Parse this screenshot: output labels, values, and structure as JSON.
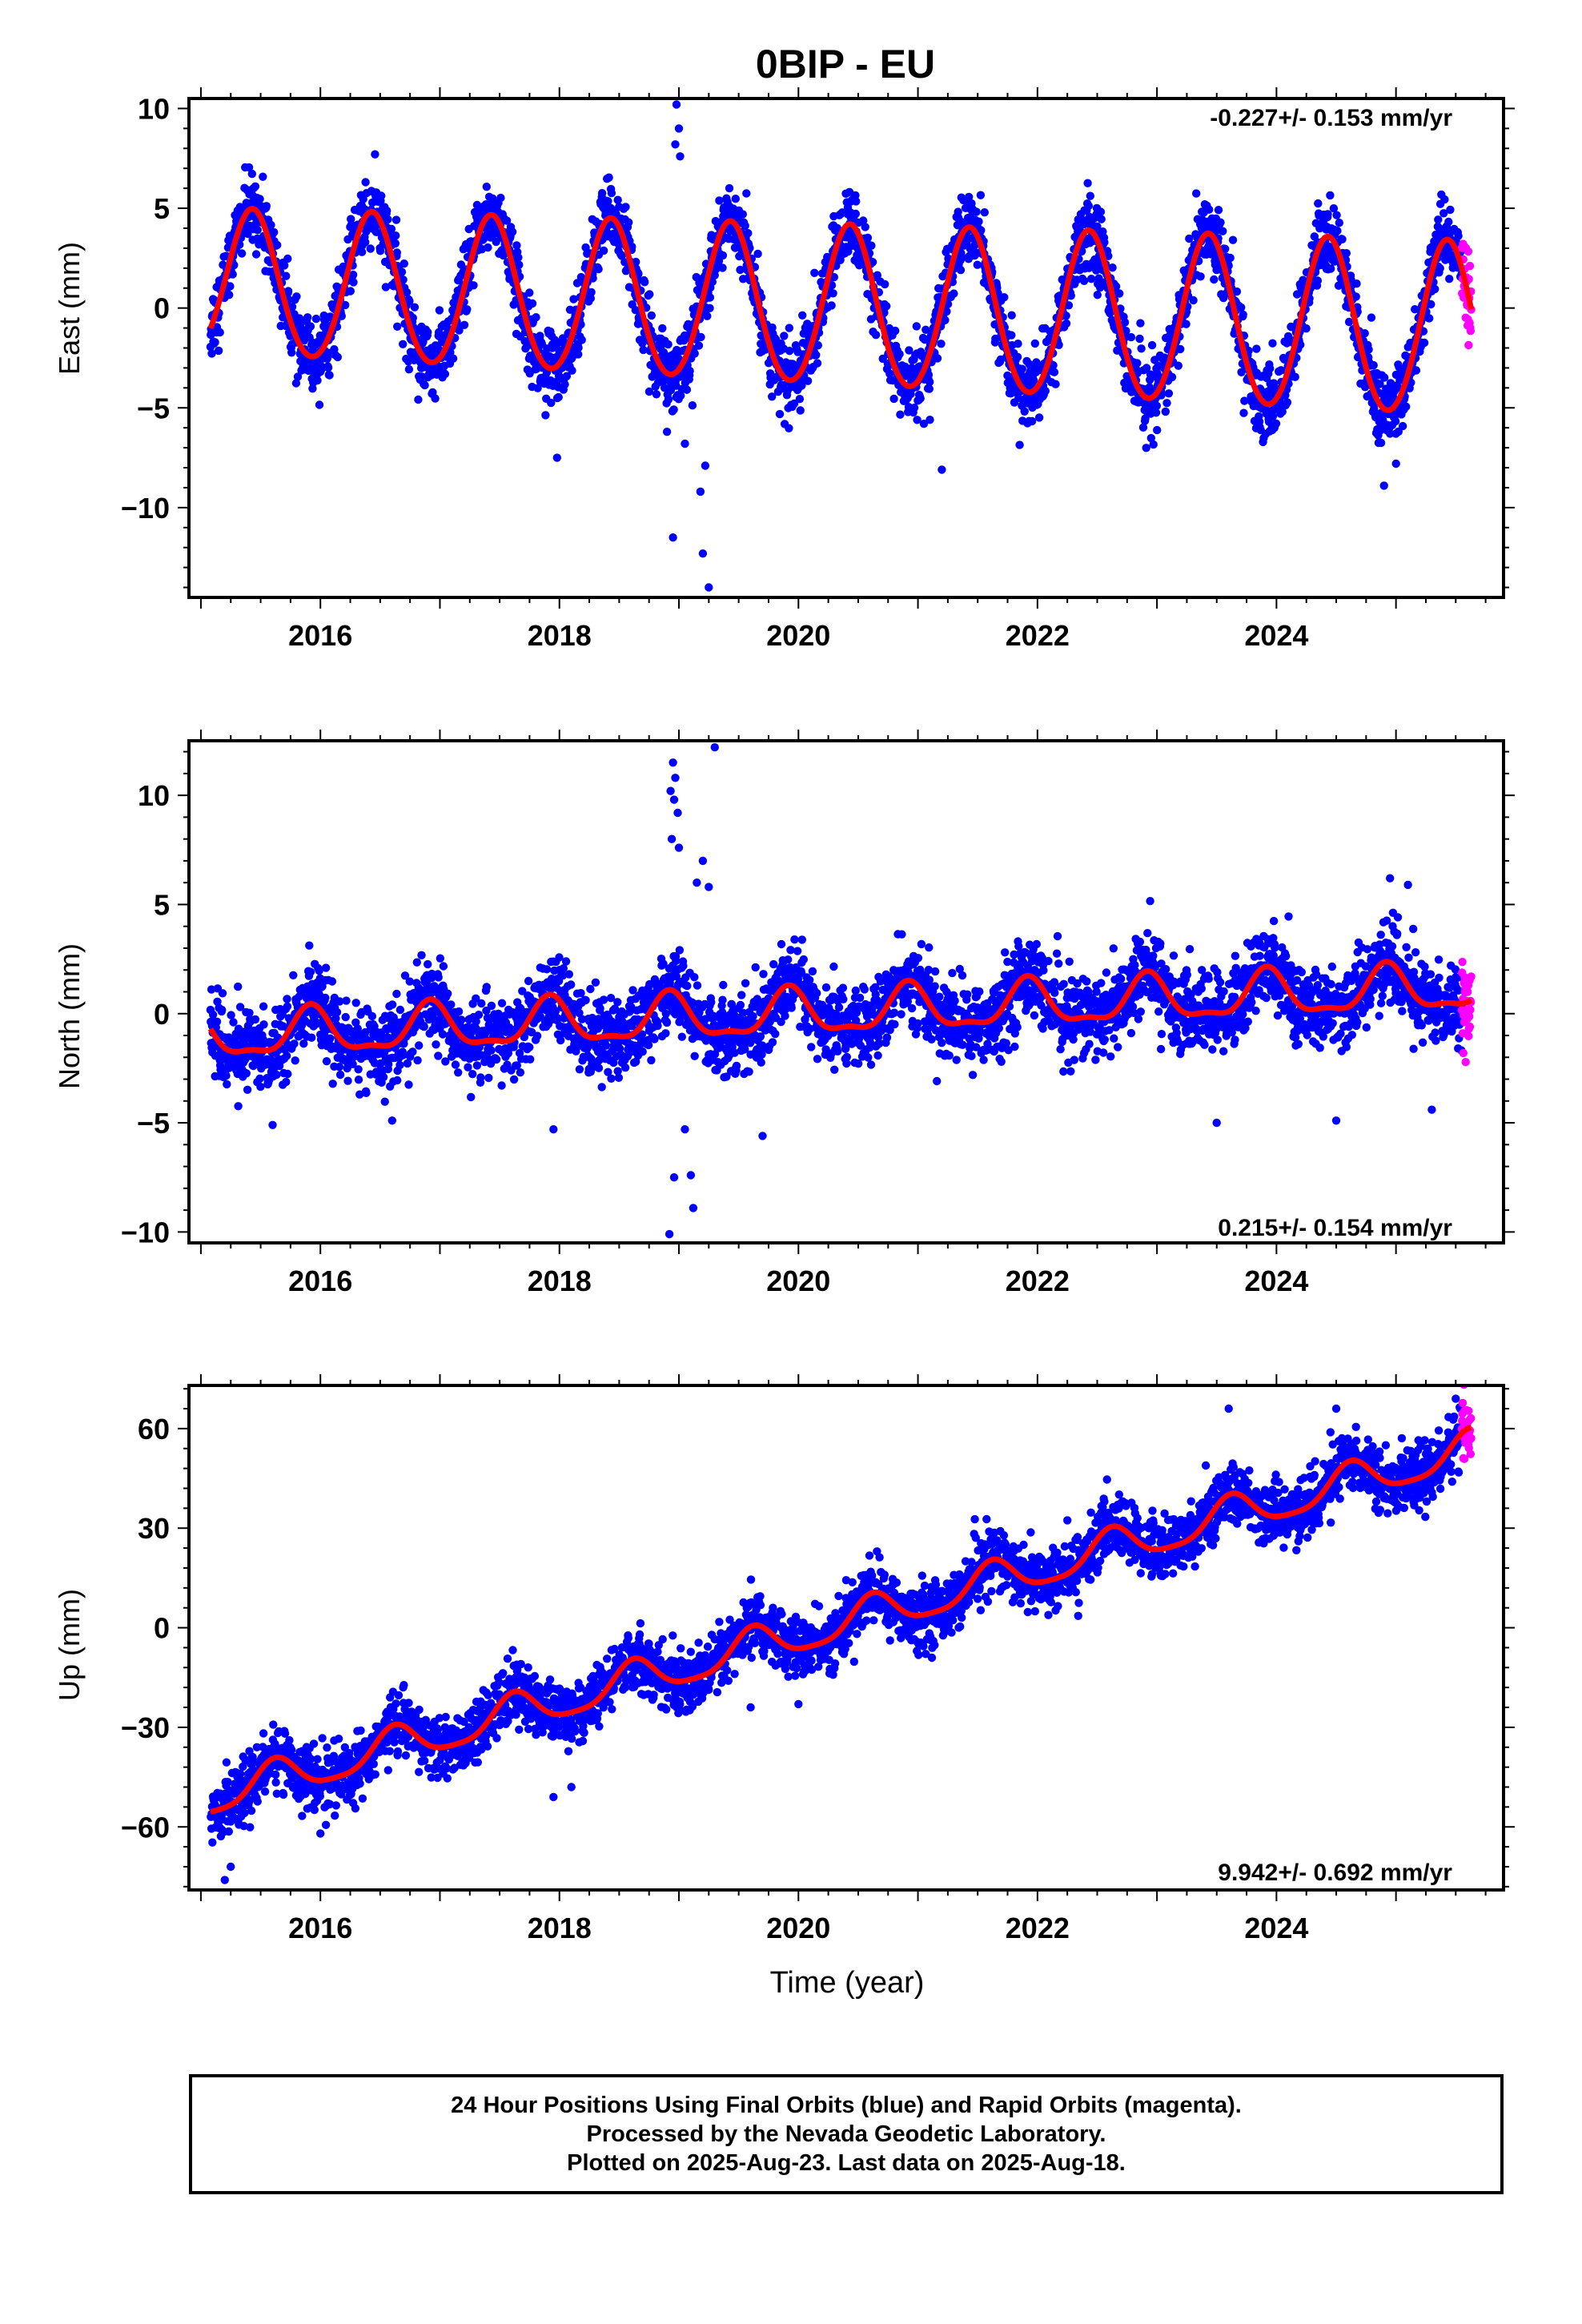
{
  "figure": {
    "title": "0BIP - EU",
    "xlabel": "Time (year)",
    "caption": [
      "24 Hour Positions Using Final Orbits (blue) and Rapid Orbits (magenta).",
      "Processed by the Nevada Geodetic Laboratory.",
      "Plotted on 2025-Aug-23. Last data on 2025-Aug-18."
    ],
    "colors": {
      "final_orbits": "#0000ff",
      "rapid_orbits": "#ff00ff",
      "model_fit": "#ff0000",
      "frame": "#000000"
    }
  },
  "chart_data": [
    {
      "type": "scatter",
      "component": "east",
      "ylabel": "East (mm)",
      "velocity": "-0.227+/- 0.153 mm/yr",
      "velocity_mm_yr": -0.227,
      "velocity_sigma": 0.153,
      "xlim": [
        2014.9,
        2025.9
      ],
      "ylim": [
        -14.5,
        10.5
      ],
      "xticks": [
        2016,
        2018,
        2020,
        2022,
        2024
      ],
      "yticks": [
        -10,
        -5,
        0,
        5,
        10
      ],
      "x_start": 2015.08,
      "x_end": 2025.63,
      "rapid_start": 2025.55,
      "model": {
        "offset": 1.2,
        "trend": -0.227,
        "annual_amplitude": 3.6,
        "annual_phase_peak": 0.43,
        "semiannual_amplitude": 0.25,
        "amplitude_growth": 0.02
      },
      "scatter_sigma": 0.9,
      "outliers": [
        [
          2018.98,
          10.2
        ],
        [
          2019.0,
          9.0
        ],
        [
          2018.97,
          8.2
        ],
        [
          2019.01,
          7.6
        ],
        [
          2018.95,
          -11.5
        ],
        [
          2019.2,
          -12.3
        ],
        [
          2019.25,
          -14.0
        ],
        [
          2019.18,
          -9.2
        ],
        [
          2019.22,
          -7.9
        ],
        [
          2018.9,
          -6.2
        ],
        [
          2019.05,
          -6.8
        ],
        [
          2017.98,
          -7.5
        ],
        [
          2021.05,
          -5.8
        ],
        [
          2021.1,
          -5.6
        ],
        [
          2021.2,
          -8.1
        ],
        [
          2024.9,
          -8.9
        ],
        [
          2025.0,
          -7.8
        ]
      ],
      "series": [
        {
          "name": "Final Orbits",
          "color": "#0000ff"
        },
        {
          "name": "Rapid Orbits",
          "color": "#ff00ff"
        },
        {
          "name": "Model fit",
          "color": "#ff0000"
        }
      ]
    },
    {
      "type": "scatter",
      "component": "north",
      "ylabel": "North (mm)",
      "velocity": "0.215+/- 0.154 mm/yr",
      "velocity_mm_yr": 0.215,
      "velocity_sigma": 0.154,
      "xlim": [
        2014.9,
        2025.9
      ],
      "ylim": [
        -10.5,
        12.5
      ],
      "xticks": [
        2016,
        2018,
        2020,
        2022,
        2024
      ],
      "yticks": [
        -10,
        -5,
        0,
        5,
        10
      ],
      "x_start": 2015.08,
      "x_end": 2025.63,
      "rapid_start": 2025.55,
      "model": {
        "offset": -1.1,
        "trend": 0.215,
        "annual_amplitude": 1.0,
        "annual_phase_peak": 0.92,
        "semiannual_amplitude": 0.35,
        "amplitude_growth": 0.0
      },
      "scatter_sigma": 0.9,
      "outliers": [
        [
          2018.95,
          11.5
        ],
        [
          2018.97,
          10.8
        ],
        [
          2018.93,
          10.2
        ],
        [
          2018.96,
          9.8
        ],
        [
          2018.99,
          9.2
        ],
        [
          2018.94,
          8.0
        ],
        [
          2019.0,
          7.6
        ],
        [
          2019.3,
          12.2
        ],
        [
          2019.2,
          7.0
        ],
        [
          2019.25,
          5.8
        ],
        [
          2019.15,
          6.0
        ],
        [
          2018.92,
          -10.1
        ],
        [
          2018.96,
          -7.5
        ],
        [
          2019.1,
          -7.4
        ],
        [
          2019.12,
          -8.9
        ],
        [
          2019.05,
          -5.3
        ],
        [
          2019.7,
          -5.6
        ],
        [
          2017.95,
          -5.3
        ],
        [
          2015.6,
          -5.1
        ],
        [
          2016.6,
          -4.9
        ],
        [
          2023.5,
          -5.0
        ],
        [
          2024.5,
          -4.9
        ],
        [
          2025.3,
          -4.4
        ],
        [
          2024.95,
          6.2
        ],
        [
          2025.1,
          5.9
        ]
      ],
      "series": [
        {
          "name": "Final Orbits",
          "color": "#0000ff"
        },
        {
          "name": "Rapid Orbits",
          "color": "#ff00ff"
        },
        {
          "name": "Model fit",
          "color": "#ff0000"
        }
      ]
    },
    {
      "type": "scatter",
      "component": "up",
      "ylabel": "Up (mm)",
      "velocity": "9.942+/- 0.692 mm/yr",
      "velocity_mm_yr": 9.942,
      "velocity_sigma": 0.692,
      "xlim": [
        2014.9,
        2025.9
      ],
      "ylim": [
        -79,
        73
      ],
      "xticks": [
        2016,
        2018,
        2020,
        2022,
        2024
      ],
      "yticks": [
        -60,
        -30,
        0,
        30,
        60
      ],
      "x_start": 2015.08,
      "x_end": 2025.63,
      "rapid_start": 2025.55,
      "model": {
        "offset": -52.0,
        "trend": 9.942,
        "annual_amplitude": 5.5,
        "annual_phase_peak": 0.62,
        "semiannual_amplitude": 1.2,
        "amplitude_growth": 0.0
      },
      "scatter_sigma": 4.5,
      "outliers": [
        [
          2015.2,
          -76
        ],
        [
          2015.25,
          -72
        ],
        [
          2016.0,
          -62
        ],
        [
          2017.95,
          -51
        ],
        [
          2018.1,
          -48
        ],
        [
          2023.6,
          66
        ],
        [
          2024.5,
          66
        ],
        [
          2025.5,
          69
        ],
        [
          2019.6,
          -24
        ],
        [
          2020.0,
          -23
        ]
      ],
      "series": [
        {
          "name": "Final Orbits",
          "color": "#0000ff"
        },
        {
          "name": "Rapid Orbits",
          "color": "#ff00ff"
        },
        {
          "name": "Model fit",
          "color": "#ff0000"
        }
      ]
    }
  ]
}
